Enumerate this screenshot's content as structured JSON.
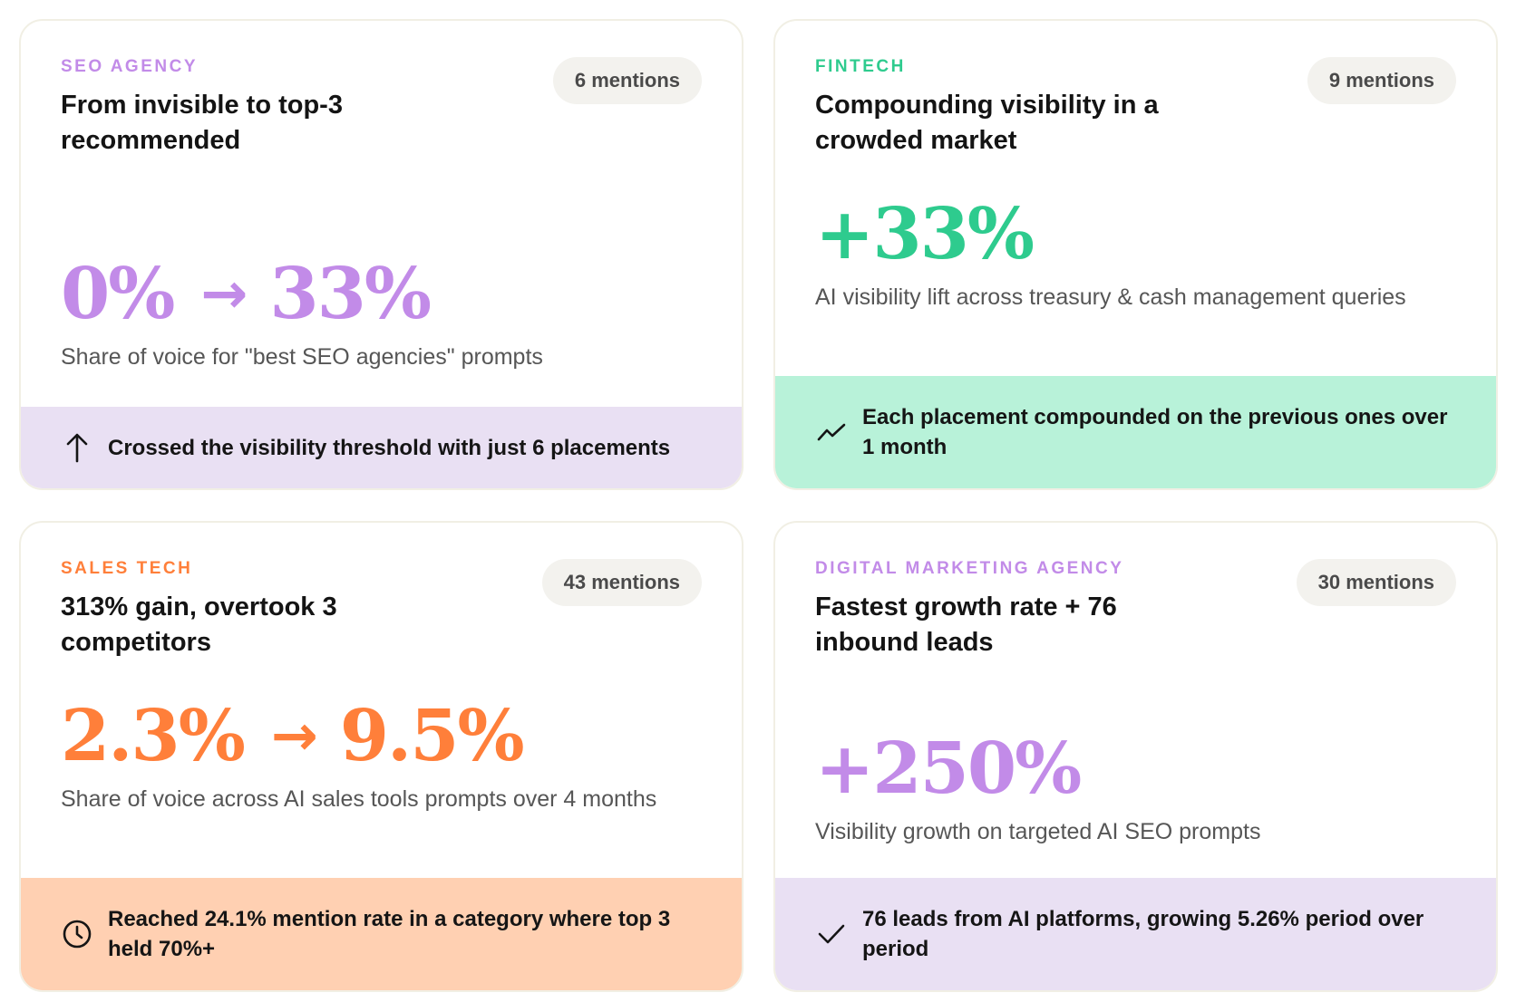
{
  "colors": {
    "purple": "#c28be8",
    "green": "#2ecb8e",
    "orange": "#ff7f3a",
    "purple_footer_bg": "#e9e0f3",
    "green_footer_bg": "#b8f2d9",
    "orange_footer_bg": "#ffd0b2"
  },
  "cards": [
    {
      "category": "SEO AGENCY",
      "mentions": "6 mentions",
      "title": "From invisible to top-3 recommended",
      "metric_from": "0%",
      "metric_arrow": "→",
      "metric_to": "33%",
      "description": "Share of voice for \"best SEO agencies\" prompts",
      "footer_icon": "arrow-up-icon",
      "footer_text": "Crossed the visibility threshold with just 6 placements"
    },
    {
      "category": "FINTECH",
      "mentions": "9 mentions",
      "title": "Compounding visibility in a crowded market",
      "metric_value": "+33%",
      "description": "AI visibility lift across treasury & cash management queries",
      "footer_icon": "trending-up-icon",
      "footer_text": "Each placement compounded on the previous ones over 1 month"
    },
    {
      "category": "SALES TECH",
      "mentions": "43 mentions",
      "title": "313% gain, overtook 3 competitors",
      "metric_from": "2.3%",
      "metric_arrow": "→",
      "metric_to": "9.5%",
      "description": "Share of voice across AI sales tools prompts over 4 months",
      "footer_icon": "clock-icon",
      "footer_text": "Reached 24.1% mention rate in a category where top 3 held 70%+"
    },
    {
      "category": "DIGITAL MARKETING AGENCY",
      "mentions": "30 mentions",
      "title": "Fastest growth rate + 76 inbound leads",
      "metric_value": "+250%",
      "description": "Visibility growth on targeted AI SEO prompts",
      "footer_icon": "checkmark-icon",
      "footer_text": "76 leads from AI platforms, growing 5.26% period over period"
    }
  ]
}
